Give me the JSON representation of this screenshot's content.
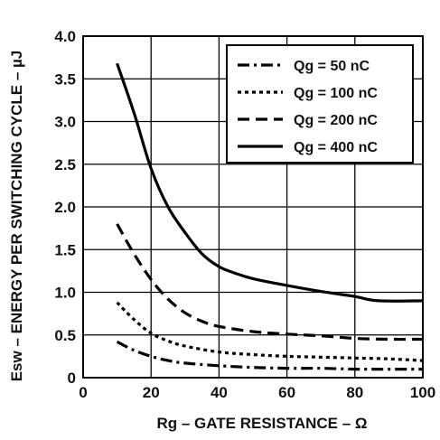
{
  "chart_data": {
    "type": "line",
    "title": "",
    "xlabel": "Rg – GATE RESISTANCE  – Ω",
    "ylabel": "Esw – ENERGY PER SWITCHING CYCLE – µJ",
    "xlim": [
      0,
      100
    ],
    "ylim": [
      0,
      4.0
    ],
    "xticks": [
      "0",
      "20",
      "40",
      "60",
      "80",
      "100"
    ],
    "yticks": [
      "0",
      "0.5",
      "1.0",
      "1.5",
      "2.0",
      "2.5",
      "3.0",
      "3.5",
      "4.0"
    ],
    "grid": true,
    "legend_position": "top-right",
    "series": [
      {
        "name": "Qg = 50 nC",
        "style": "dash-dot",
        "x": [
          10,
          15,
          20,
          25,
          30,
          40,
          50,
          60,
          70,
          80,
          90,
          100
        ],
        "y": [
          0.42,
          0.32,
          0.25,
          0.2,
          0.17,
          0.14,
          0.12,
          0.11,
          0.11,
          0.1,
          0.1,
          0.1
        ]
      },
      {
        "name": "Qg = 100 nC",
        "style": "dotted",
        "x": [
          10,
          15,
          20,
          25,
          30,
          40,
          50,
          60,
          70,
          80,
          90,
          100
        ],
        "y": [
          0.88,
          0.68,
          0.52,
          0.43,
          0.37,
          0.3,
          0.27,
          0.25,
          0.24,
          0.23,
          0.22,
          0.2
        ]
      },
      {
        "name": "Qg = 200 nC",
        "style": "dashed",
        "x": [
          10,
          15,
          20,
          25,
          30,
          35,
          40,
          50,
          60,
          70,
          80,
          90,
          100
        ],
        "y": [
          1.8,
          1.45,
          1.15,
          0.92,
          0.76,
          0.66,
          0.6,
          0.54,
          0.51,
          0.49,
          0.46,
          0.45,
          0.45
        ]
      },
      {
        "name": "Qg = 400 nC",
        "style": "solid",
        "x": [
          10,
          15,
          20,
          25,
          30,
          35,
          40,
          45,
          50,
          60,
          70,
          80,
          87,
          100
        ],
        "y": [
          3.68,
          3.1,
          2.45,
          2.0,
          1.7,
          1.45,
          1.3,
          1.22,
          1.16,
          1.08,
          1.01,
          0.95,
          0.9,
          0.9
        ]
      }
    ]
  }
}
